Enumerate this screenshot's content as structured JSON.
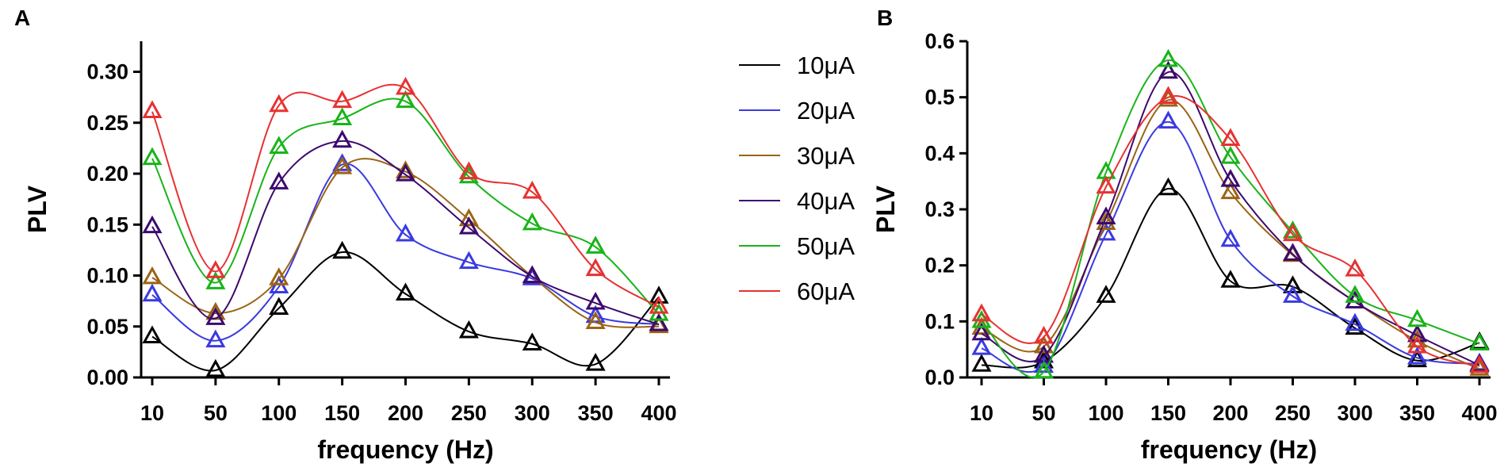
{
  "chart_data": [
    {
      "type": "line",
      "panel_label": "A",
      "title": "",
      "xlabel": "frequency (Hz)",
      "ylabel": "PLV",
      "x": [
        10,
        50,
        100,
        150,
        200,
        250,
        300,
        350,
        400
      ],
      "x_tick_labels": [
        "10",
        "50",
        "100",
        "150",
        "200",
        "250",
        "300",
        "350",
        "400"
      ],
      "ylim": [
        0,
        0.33
      ],
      "y_ticks": [
        0,
        0.05,
        0.1,
        0.15,
        0.2,
        0.25,
        0.3
      ],
      "y_tick_labels": [
        "0.00",
        "0.05",
        "0.10",
        "0.15",
        "0.20",
        "0.25",
        "0.30"
      ],
      "series": [
        {
          "name": "10μA",
          "color": "#000000",
          "values": [
            0.04,
            0.007,
            0.068,
            0.123,
            0.082,
            0.045,
            0.033,
            0.013,
            0.079
          ]
        },
        {
          "name": "20μA",
          "color": "#3a3ae0",
          "values": [
            0.081,
            0.036,
            0.089,
            0.209,
            0.14,
            0.113,
            0.097,
            0.06,
            0.052
          ]
        },
        {
          "name": "30μA",
          "color": "#9b6414",
          "values": [
            0.098,
            0.063,
            0.097,
            0.206,
            0.202,
            0.155,
            0.099,
            0.054,
            0.05
          ]
        },
        {
          "name": "40μA",
          "color": "#3c0a6e",
          "values": [
            0.148,
            0.058,
            0.191,
            0.232,
            0.199,
            0.147,
            0.099,
            0.073,
            0.052
          ]
        },
        {
          "name": "50μA",
          "color": "#19b419",
          "values": [
            0.215,
            0.093,
            0.226,
            0.254,
            0.271,
            0.197,
            0.151,
            0.128,
            0.062
          ]
        },
        {
          "name": "60μA",
          "color": "#e63232",
          "values": [
            0.261,
            0.104,
            0.267,
            0.271,
            0.284,
            0.201,
            0.182,
            0.106,
            0.069
          ]
        }
      ]
    },
    {
      "type": "line",
      "panel_label": "B",
      "title": "",
      "xlabel": "frequency (Hz)",
      "ylabel": "PLV",
      "x": [
        10,
        50,
        100,
        150,
        200,
        250,
        300,
        350,
        400
      ],
      "x_tick_labels": [
        "10",
        "50",
        "100",
        "150",
        "200",
        "250",
        "300",
        "350",
        "400"
      ],
      "ylim": [
        0,
        0.6
      ],
      "y_ticks": [
        0,
        0.1,
        0.2,
        0.3,
        0.4,
        0.5,
        0.6
      ],
      "y_tick_labels": [
        "0.0",
        "0.1",
        "0.2",
        "0.3",
        "0.4",
        "0.5",
        "0.6"
      ],
      "series": [
        {
          "name": "10μA",
          "color": "#000000",
          "values": [
            0.022,
            0.028,
            0.145,
            0.337,
            0.172,
            0.162,
            0.088,
            0.03,
            0.062
          ]
        },
        {
          "name": "20μA",
          "color": "#3a3ae0",
          "values": [
            0.052,
            0.02,
            0.256,
            0.456,
            0.245,
            0.145,
            0.095,
            0.035,
            0.024
          ]
        },
        {
          "name": "30μA",
          "color": "#9b6414",
          "values": [
            0.088,
            0.055,
            0.275,
            0.495,
            0.33,
            0.218,
            0.135,
            0.065,
            0.015
          ]
        },
        {
          "name": "40μA",
          "color": "#3c0a6e",
          "values": [
            0.078,
            0.038,
            0.285,
            0.545,
            0.352,
            0.22,
            0.135,
            0.075,
            0.022
          ]
        },
        {
          "name": "50μA",
          "color": "#19b419",
          "values": [
            0.1,
            0.01,
            0.366,
            0.566,
            0.393,
            0.26,
            0.145,
            0.102,
            0.06
          ]
        },
        {
          "name": "60μA",
          "color": "#e63232",
          "values": [
            0.112,
            0.072,
            0.34,
            0.5,
            0.425,
            0.255,
            0.192,
            0.055,
            0.02
          ]
        }
      ]
    }
  ]
}
